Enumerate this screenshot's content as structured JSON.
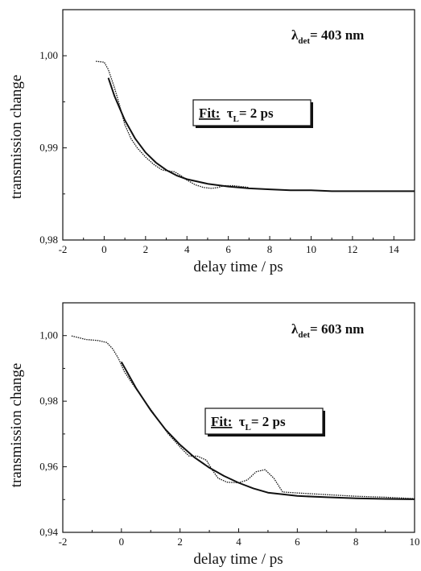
{
  "chart_data": [
    {
      "type": "line",
      "title": "",
      "xlabel": "delay time / ps",
      "ylabel": "transmission change",
      "xlim": [
        -2,
        15
      ],
      "ylim": [
        0.98,
        1.005
      ],
      "xticks": [
        -2,
        0,
        2,
        4,
        6,
        8,
        10,
        12,
        14
      ],
      "xtick_labels": [
        "-2",
        "0",
        "2",
        "4",
        "6",
        "8",
        "10",
        "12",
        "14"
      ],
      "yticks": [
        0.98,
        0.99,
        1.0
      ],
      "ytick_labels": [
        "0,98",
        "0,99",
        "1,00"
      ],
      "grid": false,
      "annotations": {
        "detection": {
          "prefix": "λ",
          "sub": "det",
          "text": "= 403 nm"
        },
        "fit": {
          "label": "Fit:",
          "tau": "τ",
          "sub": "L",
          "text": "= 2 ps"
        }
      },
      "series": [
        {
          "style": "dotted",
          "x": [
            -0.4,
            0.0,
            0.2,
            0.5,
            0.8,
            1.0,
            1.3,
            1.6,
            2.0,
            2.4,
            2.8,
            3.1,
            3.4,
            3.7,
            4.0,
            4.4,
            4.8,
            5.2,
            5.5,
            5.8,
            6.2,
            6.6,
            7.0
          ],
          "y": [
            0.9994,
            0.9993,
            0.9985,
            0.9965,
            0.9942,
            0.9925,
            0.991,
            0.99,
            0.989,
            0.9882,
            0.9876,
            0.9875,
            0.9874,
            0.987,
            0.9865,
            0.986,
            0.9857,
            0.9856,
            0.9857,
            0.9859,
            0.9859,
            0.9858,
            0.9857
          ]
        },
        {
          "style": "solid",
          "x": [
            0.2,
            0.5,
            1.0,
            1.5,
            2.0,
            2.5,
            3.0,
            3.5,
            4.0,
            5.0,
            6.0,
            7.0,
            8.0,
            9.0,
            10.0,
            11.0,
            12.0,
            13.0,
            14.0,
            15.0
          ],
          "y": [
            0.9976,
            0.9956,
            0.993,
            0.991,
            0.9895,
            0.9884,
            0.9876,
            0.987,
            0.9866,
            0.9861,
            0.9858,
            0.9856,
            0.9855,
            0.9854,
            0.9854,
            0.9853,
            0.9853,
            0.9853,
            0.9853,
            0.9853
          ]
        }
      ]
    },
    {
      "type": "line",
      "title": "",
      "xlabel": "delay time / ps",
      "ylabel": "transmission change",
      "xlim": [
        -2,
        10
      ],
      "ylim": [
        0.94,
        1.01
      ],
      "xticks": [
        -2,
        0,
        2,
        4,
        6,
        8,
        10
      ],
      "xtick_labels": [
        "-2",
        "0",
        "2",
        "4",
        "6",
        "8",
        "10"
      ],
      "yticks": [
        0.94,
        0.96,
        0.98,
        1.0
      ],
      "ytick_labels": [
        "0,94",
        "0,96",
        "0,98",
        "1,00"
      ],
      "grid": false,
      "annotations": {
        "detection": {
          "prefix": "λ",
          "sub": "det",
          "text": "= 603 nm"
        },
        "fit": {
          "label": "Fit:",
          "tau": "τ",
          "sub": "L",
          "text": "= 2 ps"
        }
      },
      "series": [
        {
          "style": "dotted",
          "x": [
            -1.7,
            -1.2,
            -0.8,
            -0.5,
            -0.3,
            -0.1,
            0.1,
            0.4,
            0.8,
            1.2,
            1.6,
            2.0,
            2.3,
            2.6,
            2.9,
            3.1,
            3.3,
            3.6,
            4.0,
            4.3,
            4.6,
            4.9,
            5.2,
            5.5,
            6.0,
            7.0,
            8.0,
            9.0,
            10.0
          ],
          "y": [
            0.9999,
            0.9988,
            0.9985,
            0.9979,
            0.996,
            0.993,
            0.989,
            0.985,
            0.98,
            0.975,
            0.97,
            0.966,
            0.9633,
            0.9632,
            0.962,
            0.959,
            0.9565,
            0.9553,
            0.9551,
            0.956,
            0.9585,
            0.9591,
            0.9565,
            0.9523,
            0.952,
            0.9515,
            0.951,
            0.9507,
            0.9503
          ]
        },
        {
          "style": "solid",
          "x": [
            0.0,
            0.5,
            1.0,
            1.5,
            2.0,
            2.5,
            3.0,
            3.5,
            4.0,
            4.5,
            5.0,
            6.0,
            7.0,
            8.0,
            9.0,
            10.0
          ],
          "y": [
            0.992,
            0.984,
            0.9772,
            0.9714,
            0.9667,
            0.9628,
            0.9597,
            0.9572,
            0.9551,
            0.9534,
            0.9521,
            0.9511,
            0.9507,
            0.9504,
            0.9502,
            0.9501
          ]
        }
      ]
    }
  ]
}
